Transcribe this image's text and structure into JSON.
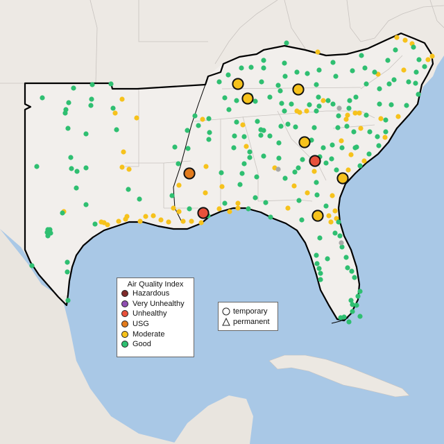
{
  "legend": {
    "title": "Air Quality Index",
    "categories": [
      {
        "label": "Hazardous",
        "color": "#7e2a2a"
      },
      {
        "label": "Very Unhealthy",
        "color": "#8f4fb1"
      },
      {
        "label": "Unhealthy",
        "color": "#e8513c"
      },
      {
        "label": "USG",
        "color": "#e27b1d"
      },
      {
        "label": "Moderate",
        "color": "#f6c21c"
      },
      {
        "label": "Good",
        "color": "#2fbf71"
      }
    ]
  },
  "type_legend": {
    "temporary": "temporary",
    "permanent": "permanent"
  },
  "colors": {
    "water": "#a9c8e6",
    "land": "#ede9e4",
    "region": "#f2efec",
    "border": "#c8c3bf",
    "outline": "#000000"
  }
}
